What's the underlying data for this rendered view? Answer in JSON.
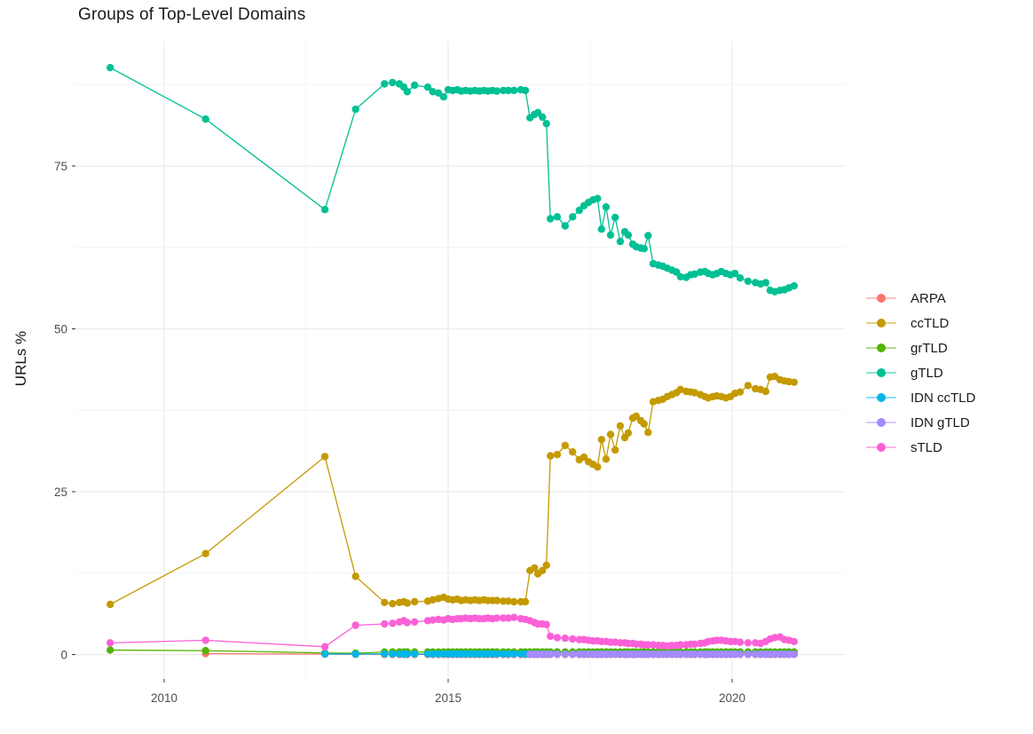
{
  "chart_data": {
    "type": "line",
    "title": "Groups of Top-Level Domains",
    "xlabel": "",
    "ylabel": "URLs %",
    "legend_position": "right",
    "grid": "on",
    "background": "#ffffff",
    "grid_major_color": "#EBEBEB",
    "grid_minor_color": "#F4F4F4",
    "axis_text_color": "#4d4d4d",
    "x_breaks": [
      2010,
      2015,
      2020
    ],
    "x_break_labels": [
      "2010",
      "2015",
      "2020"
    ],
    "x_minor_breaks": [
      2012.5,
      2017.5
    ],
    "y_breaks": [
      0,
      25,
      50,
      75
    ],
    "y_break_labels": [
      "0",
      "25",
      "50",
      "75"
    ],
    "y_minor_breaks": [
      12.5,
      37.5,
      62.5,
      87.5
    ],
    "xlim": [
      2008.44,
      2021.95
    ],
    "ylim": [
      -3.75,
      94.2
    ],
    "x_dense": [
      2013.88,
      2014.02,
      2014.14,
      2014.22,
      2014.28,
      2014.41,
      2014.64,
      2014.73,
      2014.83,
      2014.92,
      2015.0,
      2015.08,
      2015.16,
      2015.23,
      2015.31,
      2015.39,
      2015.47,
      2015.55,
      2015.63,
      2015.7,
      2015.78,
      2015.86,
      2015.97,
      2016.06,
      2016.16,
      2016.28,
      2016.36,
      2016.44,
      2016.52,
      2016.58,
      2016.66,
      2016.73,
      2016.8,
      2016.92,
      2017.06,
      2017.19,
      2017.31,
      2017.39,
      2017.47,
      2017.55,
      2017.63,
      2017.7,
      2017.78,
      2017.86,
      2017.94,
      2018.03,
      2018.11,
      2018.17,
      2018.25,
      2018.31,
      2018.39,
      2018.45,
      2018.52,
      2018.61,
      2018.7,
      2018.78,
      2018.86,
      2018.94,
      2019.02,
      2019.09,
      2019.19,
      2019.27,
      2019.34,
      2019.44,
      2019.52,
      2019.58,
      2019.66,
      2019.73,
      2019.81,
      2019.89,
      2019.97,
      2020.05,
      2020.14,
      2020.28,
      2020.41,
      2020.5,
      2020.59,
      2020.67,
      2020.75,
      2020.84,
      2020.92,
      2021.0,
      2021.09
    ],
    "series": [
      {
        "name": "ARPA",
        "color": "#F8766D",
        "x_early": [
          2010.73,
          2012.83,
          2013.37
        ],
        "y_early": [
          0.15,
          0.05,
          0.03
        ],
        "dense_const": 0.02
      },
      {
        "name": "ccTLD",
        "color": "#C49A00",
        "x_early": [
          2009.05,
          2010.73,
          2012.83,
          2013.37
        ],
        "y_early": [
          7.7,
          15.5,
          30.4,
          12.0
        ],
        "y_dense": [
          8.0,
          7.8,
          8.0,
          8.1,
          7.9,
          8.1,
          8.2,
          8.4,
          8.6,
          8.8,
          8.5,
          8.4,
          8.5,
          8.3,
          8.4,
          8.3,
          8.4,
          8.3,
          8.4,
          8.3,
          8.3,
          8.3,
          8.2,
          8.2,
          8.1,
          8.1,
          8.1,
          12.9,
          13.3,
          12.4,
          12.9,
          13.7,
          30.5,
          30.7,
          32.1,
          31.1,
          29.9,
          30.3,
          29.6,
          29.2,
          28.8,
          33.0,
          30.0,
          33.8,
          31.4,
          35.1,
          33.3,
          34.0,
          36.3,
          36.6,
          35.9,
          35.4,
          34.1,
          38.8,
          39.0,
          39.2,
          39.6,
          39.9,
          40.2,
          40.7,
          40.4,
          40.3,
          40.2,
          39.9,
          39.6,
          39.4,
          39.6,
          39.7,
          39.6,
          39.4,
          39.6,
          40.1,
          40.3,
          41.3,
          40.8,
          40.7,
          40.4,
          42.6,
          42.7,
          42.2,
          42.0,
          41.9,
          41.8
        ]
      },
      {
        "name": "grTLD",
        "color": "#53B400",
        "x_early": [
          2009.05,
          2010.73,
          2012.83,
          2013.37
        ],
        "y_early": [
          0.7,
          0.6,
          0.25,
          0.2
        ],
        "dense_const": 0.4
      },
      {
        "name": "gTLD",
        "color": "#00C094",
        "x_early": [
          2009.05,
          2010.73,
          2012.83,
          2013.37
        ],
        "y_early": [
          90.1,
          82.2,
          68.3,
          83.7
        ],
        "y_dense": [
          87.6,
          87.8,
          87.6,
          87.1,
          86.4,
          87.4,
          87.1,
          86.4,
          86.2,
          85.6,
          86.7,
          86.6,
          86.7,
          86.5,
          86.6,
          86.5,
          86.6,
          86.5,
          86.6,
          86.5,
          86.6,
          86.5,
          86.6,
          86.6,
          86.6,
          86.7,
          86.6,
          82.4,
          82.9,
          83.2,
          82.5,
          81.5,
          66.9,
          67.2,
          65.8,
          67.2,
          68.2,
          68.9,
          69.4,
          69.8,
          70.0,
          65.3,
          68.7,
          64.4,
          67.1,
          63.4,
          64.9,
          64.4,
          63.0,
          62.6,
          62.4,
          62.3,
          64.3,
          60.0,
          59.8,
          59.6,
          59.3,
          59.0,
          58.7,
          58.0,
          57.9,
          58.3,
          58.4,
          58.7,
          58.8,
          58.5,
          58.3,
          58.5,
          58.8,
          58.5,
          58.3,
          58.5,
          57.8,
          57.3,
          57.1,
          56.9,
          57.1,
          55.9,
          55.7,
          55.9,
          56.0,
          56.3,
          56.6
        ]
      },
      {
        "name": "IDN ccTLD",
        "color": "#00B6EB",
        "x_early": [
          2012.83,
          2013.37
        ],
        "y_early": [
          0.1,
          0.08
        ],
        "dense_const": 0.1
      },
      {
        "name": "IDN gTLD",
        "color": "#A58AFF",
        "x_early": [],
        "y_early": [],
        "dense_const": 0.05,
        "dense_from": 2016.44
      },
      {
        "name": "sTLD",
        "color": "#FB61D7",
        "x_early": [
          2009.05,
          2010.73,
          2012.83,
          2013.37
        ],
        "y_early": [
          1.8,
          2.2,
          1.2,
          4.5
        ],
        "y_dense": [
          4.7,
          4.8,
          5.0,
          5.2,
          4.9,
          5.0,
          5.2,
          5.3,
          5.4,
          5.3,
          5.5,
          5.4,
          5.5,
          5.5,
          5.6,
          5.5,
          5.6,
          5.5,
          5.5,
          5.6,
          5.5,
          5.6,
          5.6,
          5.6,
          5.7,
          5.5,
          5.4,
          5.2,
          4.9,
          4.7,
          4.7,
          4.6,
          2.8,
          2.6,
          2.5,
          2.4,
          2.3,
          2.3,
          2.2,
          2.1,
          2.1,
          2.0,
          2.0,
          1.9,
          1.9,
          1.8,
          1.8,
          1.7,
          1.7,
          1.6,
          1.6,
          1.5,
          1.5,
          1.5,
          1.4,
          1.4,
          1.3,
          1.4,
          1.4,
          1.5,
          1.5,
          1.6,
          1.6,
          1.7,
          1.8,
          2.0,
          2.1,
          2.2,
          2.2,
          2.1,
          2.0,
          2.0,
          1.9,
          1.8,
          1.8,
          1.7,
          2.0,
          2.4,
          2.6,
          2.7,
          2.3,
          2.2,
          2.0
        ]
      }
    ]
  }
}
